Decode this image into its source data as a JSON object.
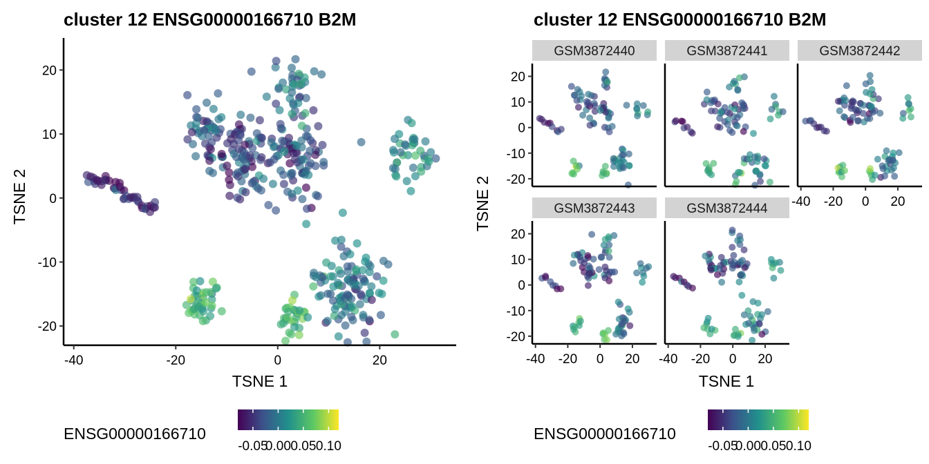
{
  "chart_data": [
    {
      "type": "scatter",
      "title": "cluster 12 ENSG00000166710 B2M",
      "xlabel": "TSNE 1",
      "ylabel": "TSNE 2",
      "xlim": [
        -42,
        35
      ],
      "ylim": [
        -23,
        25
      ],
      "xticks": [
        -40,
        -20,
        0,
        20
      ],
      "yticks": [
        -20,
        -10,
        0,
        10,
        20
      ],
      "grid": false,
      "color_scale": {
        "name": "viridis",
        "colors": [
          "#440154",
          "#3b528b",
          "#21908c",
          "#5dc863",
          "#fde725"
        ],
        "range": [
          -0.08,
          0.12
        ]
      },
      "legend": {
        "title": "ENSG00000166710",
        "position": "bottom",
        "ticks": [
          "-0.05",
          "0.00",
          "0.05",
          "0.10"
        ]
      },
      "clusters": [
        {
          "points": [
            [
              -37,
              3.5
            ],
            [
              -36,
              2.8
            ],
            [
              -35,
              3.2
            ],
            [
              -34,
              2.9
            ],
            [
              -33,
              2.6
            ],
            [
              -32,
              2.0
            ],
            [
              -31,
              1.5
            ],
            [
              -30,
              0.8
            ],
            [
              -29,
              0.3
            ],
            [
              -28,
              -0.3
            ],
            [
              -27,
              -1.0
            ],
            [
              -26,
              -1.5
            ],
            [
              -25,
              -1.8
            ],
            [
              -24,
              -1.3
            ]
          ],
          "spread": 0.8,
          "value": -0.06
        },
        {
          "center": [
            -14,
            11
          ],
          "spread": 2.0,
          "n": 40,
          "value": -0.02
        },
        {
          "center": [
            -6,
            6
          ],
          "spread": 3.5,
          "n": 90,
          "value": -0.04
        },
        {
          "center": [
            4,
            6
          ],
          "spread": 3.5,
          "n": 80,
          "value": -0.03
        },
        {
          "center": [
            3,
            17
          ],
          "spread": 2.2,
          "n": 40,
          "value": -0.01
        },
        {
          "center": [
            26,
            7
          ],
          "spread": 2.3,
          "n": 40,
          "value": 0.02
        },
        {
          "center": [
            14,
            -14
          ],
          "spread": 3.5,
          "n": 110,
          "value": 0.0
        },
        {
          "center": [
            -15,
            -16
          ],
          "spread": 1.8,
          "n": 40,
          "value": 0.05
        },
        {
          "center": [
            3,
            -19
          ],
          "spread": 1.6,
          "n": 30,
          "value": 0.05
        }
      ]
    },
    {
      "type": "scatter",
      "title": "cluster 12 ENSG00000166710 B2M",
      "xlabel": "TSNE 1",
      "ylabel": "TSNE 2",
      "xlim": [
        -42,
        35
      ],
      "ylim": [
        -23,
        25
      ],
      "xticks": [
        -40,
        -20,
        0,
        20
      ],
      "yticks": [
        -20,
        -10,
        0,
        10,
        20
      ],
      "facets": [
        {
          "name": "GSM3872440"
        },
        {
          "name": "GSM3872441"
        },
        {
          "name": "GSM3872442"
        },
        {
          "name": "GSM3872443"
        },
        {
          "name": "GSM3872444"
        }
      ],
      "legend": {
        "title": "ENSG00000166710",
        "position": "bottom",
        "ticks": [
          "-0.05",
          "0.00",
          "0.05",
          "0.10"
        ]
      }
    }
  ]
}
